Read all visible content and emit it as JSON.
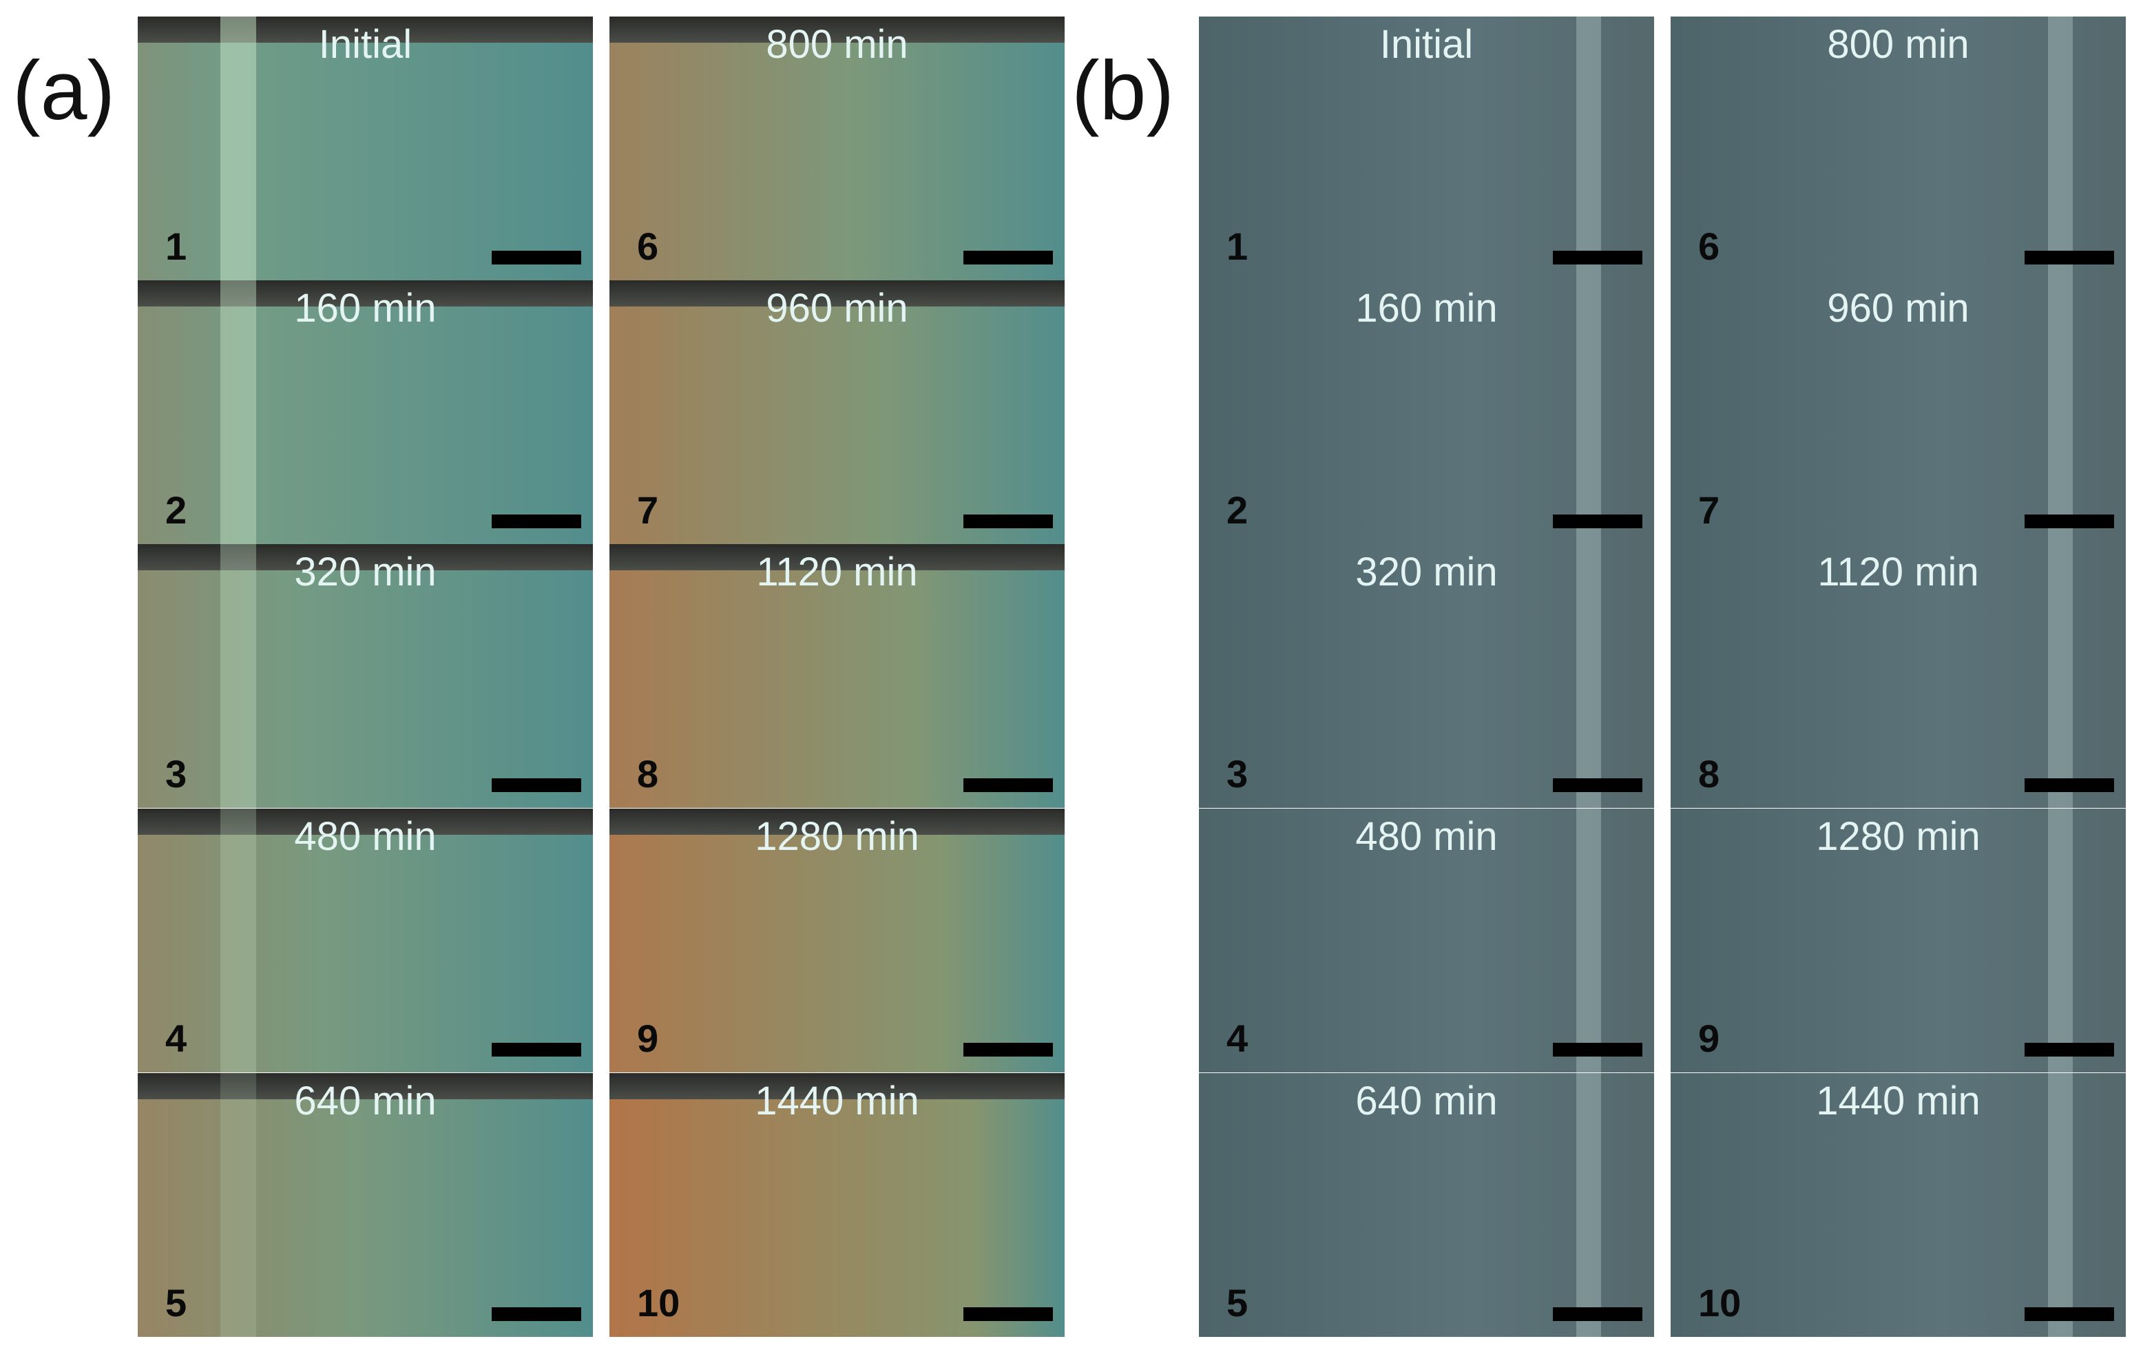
{
  "panels": [
    {
      "label": "(a)",
      "frames": [
        {
          "time": "Initial",
          "number": 1
        },
        {
          "time": "160 min",
          "number": 2
        },
        {
          "time": "320 min",
          "number": 3
        },
        {
          "time": "480 min",
          "number": 4
        },
        {
          "time": "640 min",
          "number": 5
        },
        {
          "time": "800 min",
          "number": 6
        },
        {
          "time": "960 min",
          "number": 7
        },
        {
          "time": "1120 min",
          "number": 8
        },
        {
          "time": "1280 min",
          "number": 9
        },
        {
          "time": "1440 min",
          "number": 10
        }
      ]
    },
    {
      "label": "(b)",
      "frames": [
        {
          "time": "Initial",
          "number": 1
        },
        {
          "time": "160 min",
          "number": 2
        },
        {
          "time": "320 min",
          "number": 3
        },
        {
          "time": "480 min",
          "number": 4
        },
        {
          "time": "640 min",
          "number": 5
        },
        {
          "time": "800 min",
          "number": 6
        },
        {
          "time": "960 min",
          "number": 7
        },
        {
          "time": "1120 min",
          "number": 8
        },
        {
          "time": "1280 min",
          "number": 9
        },
        {
          "time": "1440 min",
          "number": 10
        }
      ]
    }
  ]
}
